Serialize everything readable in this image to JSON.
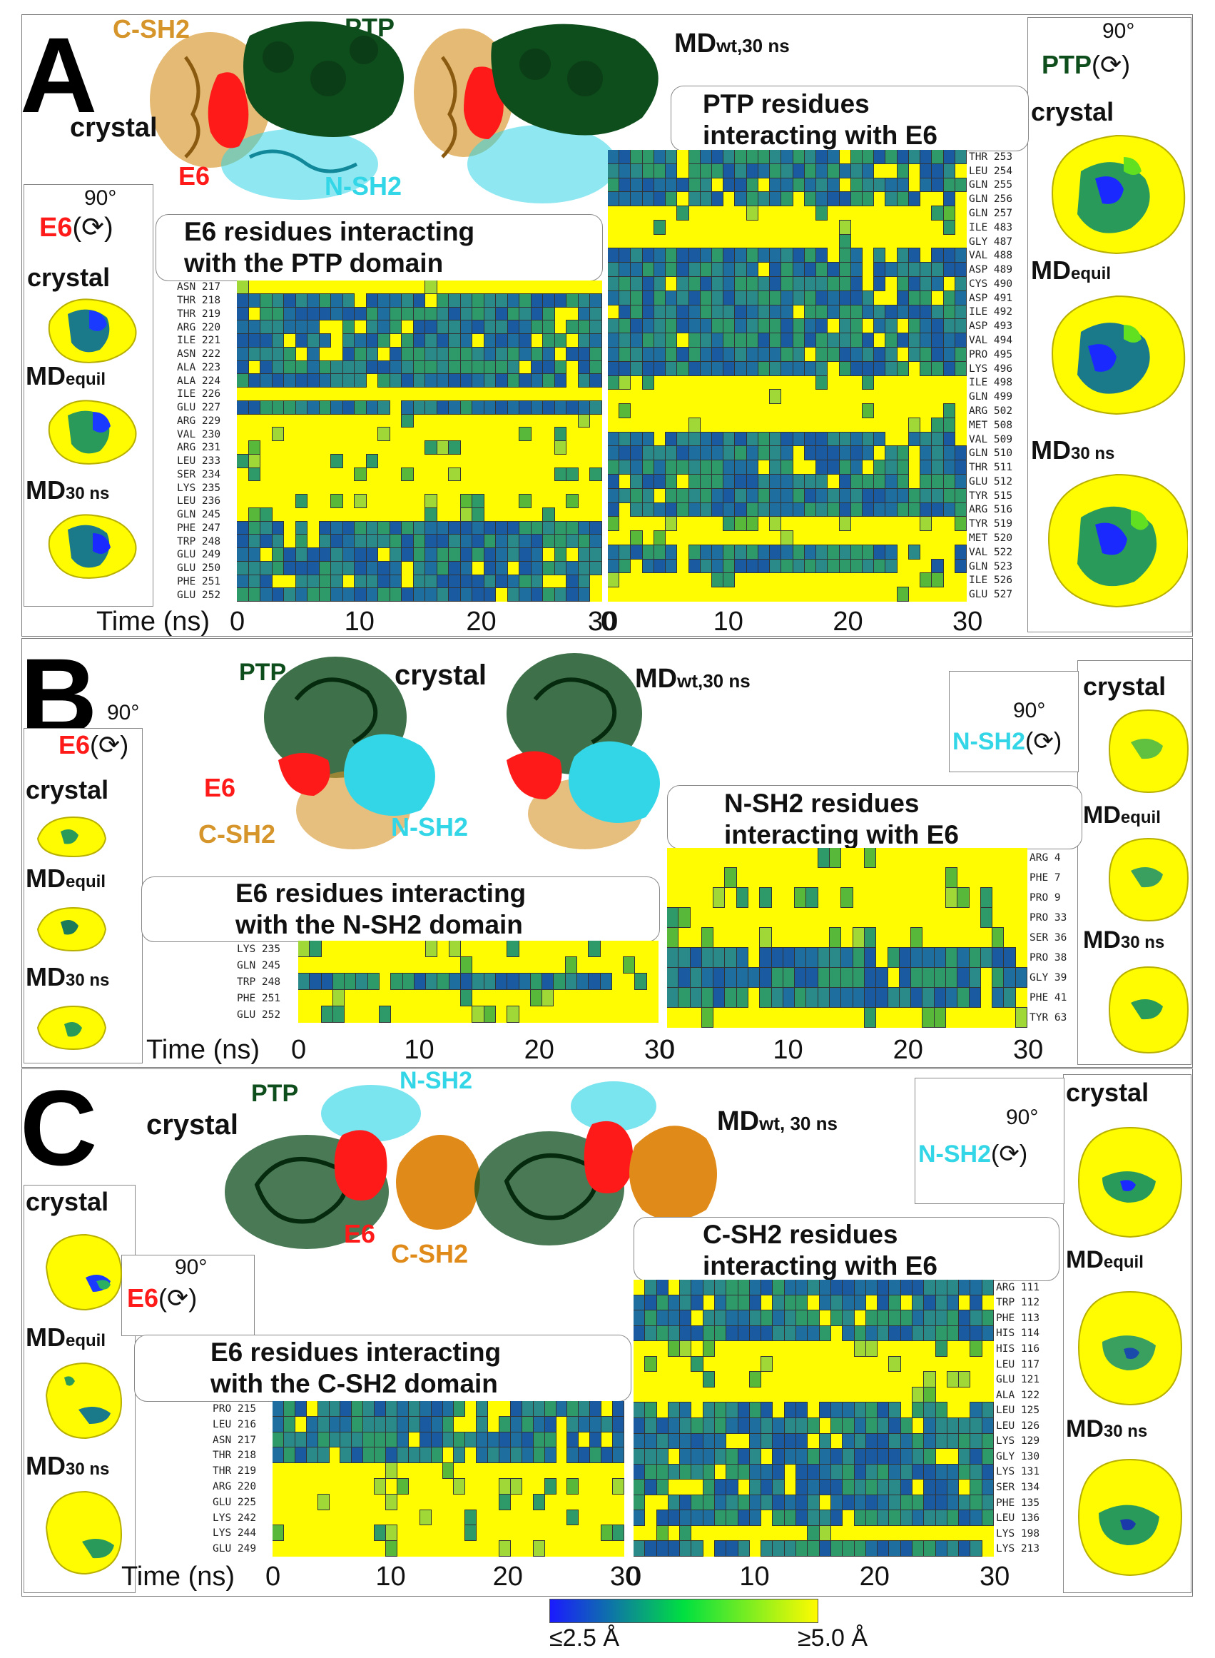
{
  "colors": {
    "yellow": "#fffb00",
    "ptp": "#0e4d1c",
    "nsh2": "#33d6e6",
    "csh2": "#d6952a",
    "e6": "#ff1a1a",
    "blue": "#1a1aff"
  },
  "panels": {
    "A": {
      "label": "A",
      "labels3d": {
        "csh2": "C-SH2",
        "ptp": "PTP",
        "crystal": "crystal",
        "e6": "E6",
        "nsh2": "N-SH2",
        "md": "MD",
        "md_sub": "wt,30 ns"
      },
      "left_inset": {
        "deg": "90°",
        "name": "E6",
        "rot": "(⟳)",
        "crystal": "crystal",
        "mdequil": "MD",
        "mdequil_sub": "equil",
        "md30": "MD",
        "md30_sub": "30 ns"
      },
      "right_inset": {
        "deg": "90°",
        "name": "PTP",
        "rot": "(⟳)",
        "crystal": "crystal",
        "mdequil": "MD",
        "mdequil_sub": "equil",
        "md30": "MD",
        "md30_sub": "30 ns"
      },
      "callout_left": [
        "E6 residues interacting",
        "with the PTP domain"
      ],
      "callout_right": [
        "PTP residues",
        "interacting with E6"
      ],
      "left_rows": [
        "ASN 217",
        "THR 218",
        "THR 219",
        "ARG 220",
        "ILE 221",
        "ASN 222",
        "ALA 223",
        "ALA 224",
        "ILE 226",
        "GLU 227",
        "ARG 229",
        "VAL 230",
        "ARG 231",
        "LEU 233",
        "SER 234",
        "LYS 235",
        "LEU 236",
        "GLN 245",
        "PHE 247",
        "TRP 248",
        "GLU 249",
        "GLU 250",
        "PHE 251",
        "GLU 252"
      ],
      "right_rows": [
        "THR 253",
        "LEU 254",
        "GLN 255",
        "GLN 256",
        "GLN 257",
        "ILE 483",
        "GLY 487",
        "VAL 488",
        "ASP 489",
        "CYS 490",
        "ASP 491",
        "ILE 492",
        "ASP 493",
        "VAL 494",
        "PRO 495",
        "LYS 496",
        "ILE 498",
        "GLN 499",
        "ARG 502",
        "MET 508",
        "VAL 509",
        "GLN 510",
        "THR 511",
        "GLU 512",
        "TYR 515",
        "ARG 516",
        "TYR 519",
        "MET 520",
        "VAL 522",
        "GLN 523",
        "ILE 526",
        "GLU 527"
      ],
      "time_label": "Time (ns)",
      "ticks_left": [
        "0",
        "10",
        "20",
        "30"
      ],
      "ticks_right": [
        "0",
        "10",
        "20",
        "30"
      ]
    },
    "B": {
      "label": "B",
      "labels3d": {
        "ptp": "PTP",
        "crystal": "crystal",
        "e6": "E6",
        "csh2": "C-SH2",
        "nsh2": "N-SH2",
        "md": "MD",
        "md_sub": "wt,30 ns"
      },
      "left_inset": {
        "deg": "90°",
        "name": "E6",
        "rot": "(⟳)",
        "crystal": "crystal",
        "mdequil": "MD",
        "mdequil_sub": "equil",
        "md30": "MD",
        "md30_sub": "30 ns"
      },
      "right_inset": {
        "deg": "90°",
        "name": "N-SH2",
        "rot": "(⟳)",
        "crystal": "crystal",
        "mdequil": "MD",
        "mdequil_sub": "equil",
        "md30": "MD",
        "md30_sub": "30 ns"
      },
      "callout_left": [
        "E6 residues interacting",
        "with the N-SH2 domain"
      ],
      "callout_right": [
        "N-SH2 residues",
        "interacting with E6"
      ],
      "left_rows": [
        "LYS 235",
        "GLN 245",
        "TRP 248",
        "PHE 251",
        "GLU 252"
      ],
      "right_rows": [
        "ARG 4",
        "PHE 7",
        "PRO 9",
        "PRO 33",
        "SER 36",
        "PRO 38",
        "GLY 39",
        "PHE 41",
        "TYR 63"
      ],
      "time_label": "Time (ns)",
      "ticks_left": [
        "0",
        "10",
        "20",
        "30"
      ],
      "ticks_right": [
        "0",
        "10",
        "20",
        "30"
      ]
    },
    "C": {
      "label": "C",
      "labels3d": {
        "ptp": "PTP",
        "nsh2": "N-SH2",
        "crystal": "crystal",
        "e6": "E6",
        "csh2": "C-SH2",
        "md": "MD",
        "md_sub": "wt, 30 ns"
      },
      "left_inset": {
        "deg": "90°",
        "name": "E6",
        "rot": "(⟳)",
        "crystal": "crystal",
        "mdequil": "MD",
        "mdequil_sub": "equil",
        "md30": "MD",
        "md30_sub": "30 ns"
      },
      "right_inset": {
        "deg": "90°",
        "name": "N-SH2",
        "rot": "(⟳)",
        "crystal": "crystal",
        "mdequil": "MD",
        "mdequil_sub": "equil",
        "md30": "MD",
        "md30_sub": "30 ns"
      },
      "callout_left": [
        "E6 residues interacting",
        "with the C-SH2 domain"
      ],
      "callout_right": [
        "C-SH2 residues",
        "interacting with E6"
      ],
      "left_rows": [
        "PRO 215",
        "LEU 216",
        "ASN 217",
        "THR 218",
        "THR 219",
        "ARG 220",
        "GLU 225",
        "LYS 242",
        "LYS 244",
        "GLU 249"
      ],
      "right_rows": [
        "ARG 111",
        "TRP 112",
        "PHE 113",
        "HIS 114",
        "HIS 116",
        "LEU 117",
        "GLU 121",
        "ALA 122",
        "LEU 125",
        "LEU 126",
        "LYS 129",
        "GLY 130",
        "LYS 131",
        "SER 134",
        "PHE 135",
        "LEU 136",
        "LYS 198",
        "LYS 213"
      ],
      "time_label": "Time (ns)",
      "ticks_left": [
        "0",
        "10",
        "20",
        "30"
      ],
      "ticks_right": [
        "0",
        "10",
        "20",
        "30"
      ]
    }
  },
  "colorbar": {
    "min_label": "≤2.5 Å",
    "max_label": "≥5.0 Å",
    "min_color": "#1a1aff",
    "mid_color": "#00e040",
    "max_color": "#fffb00"
  }
}
